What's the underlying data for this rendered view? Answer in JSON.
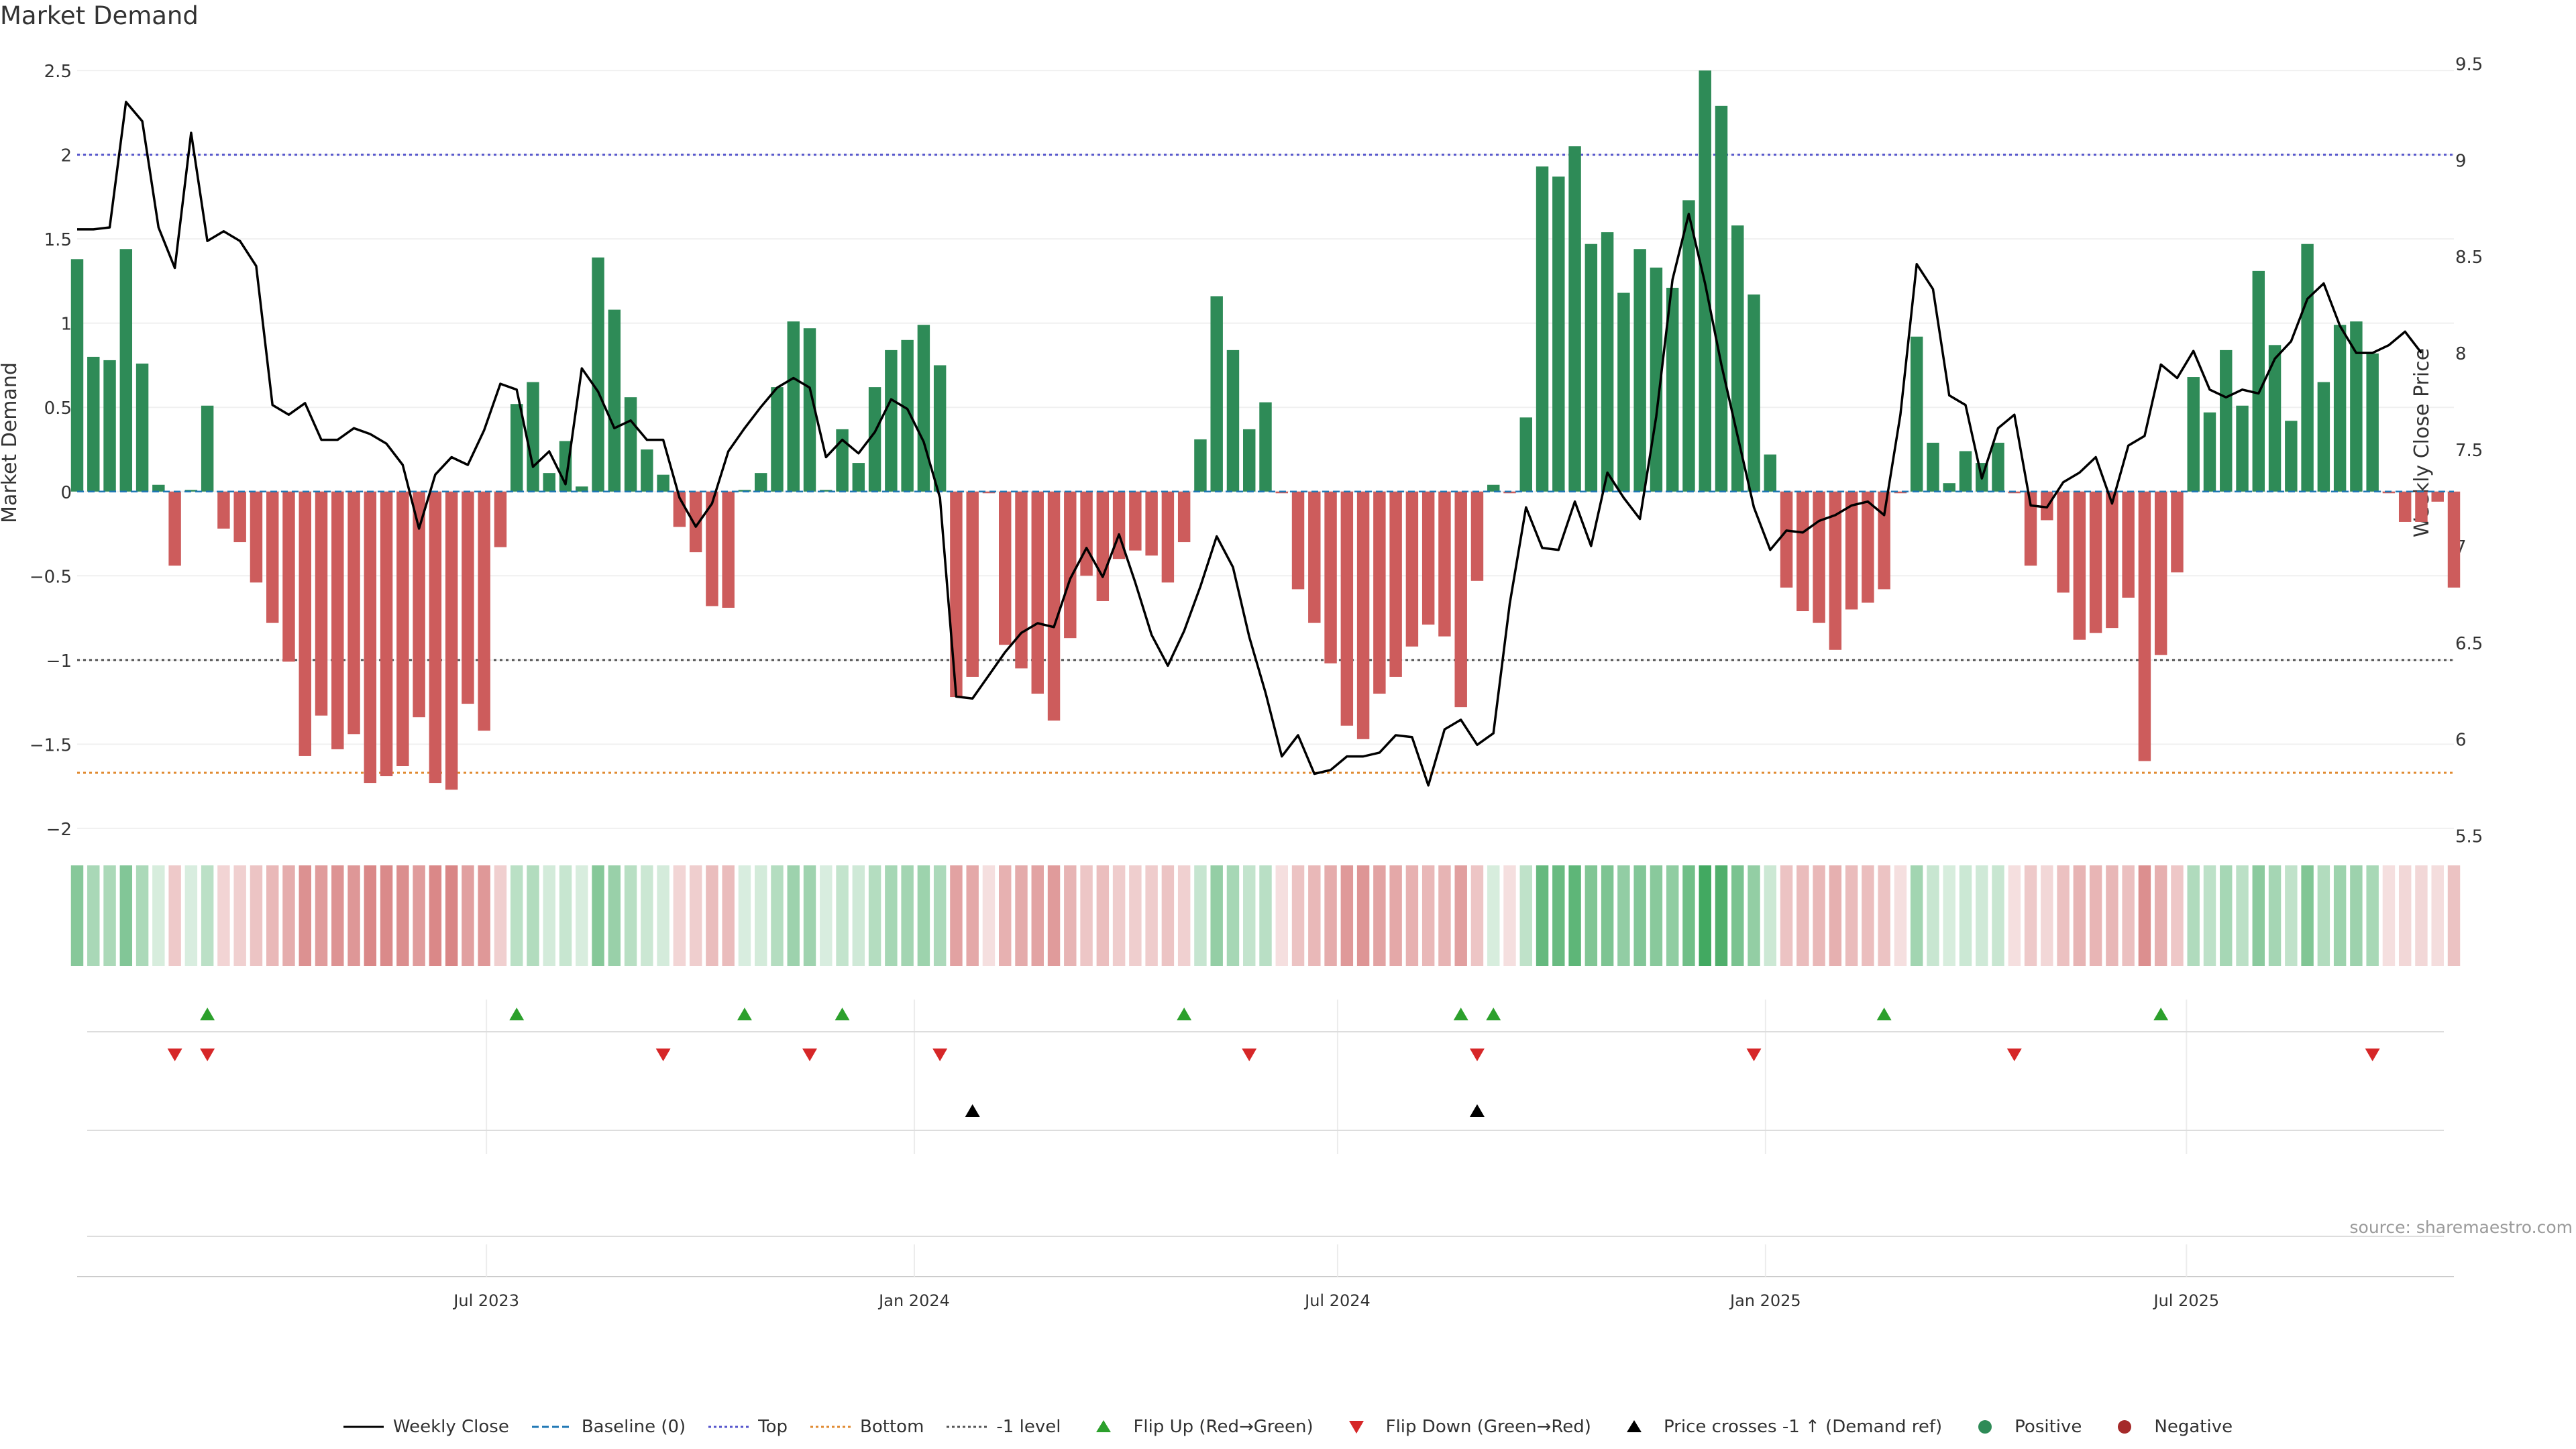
{
  "title": "Market Demand",
  "source": "source: sharemaestro.com",
  "chart_data": {
    "type": "bar",
    "title": "Market Demand",
    "ylabel": "Market Demand",
    "y2label": "Weekly Close Price",
    "ylim": [
      -2.1,
      2.6
    ],
    "y2lim": [
      5.45,
      9.55
    ],
    "yticks": [
      -2,
      -1.5,
      -1,
      -0.5,
      0,
      0.5,
      1,
      1.5,
      2,
      2.5
    ],
    "ytick_labels": [
      "−2",
      "−1.5",
      "−1",
      "−0.5",
      "0",
      "0.5",
      "1",
      "1.5",
      "2",
      "2.5"
    ],
    "y2ticks": [
      5.5,
      6,
      6.5,
      7,
      7.5,
      8,
      8.5,
      9,
      9.5
    ],
    "y2tick_labels": [
      "5.5",
      "6",
      "6.5",
      "7",
      "7.5",
      "8",
      "8.5",
      "9",
      "9.5"
    ],
    "x_start": "2023-01-06",
    "x_end": "2025-10-24",
    "xticks": [
      "2023-07-01",
      "2024-01-01",
      "2024-07-01",
      "2025-01-01",
      "2025-07-01"
    ],
    "xtick_labels": [
      "Jul 2023",
      "Jan 2024",
      "Jul 2024",
      "Jan 2025",
      "Jul 2025"
    ],
    "levels": {
      "top": 2,
      "bottom": -1.67,
      "minus_one": -1
    },
    "colors": {
      "positive": "#2e8b57",
      "negative": "#cd5c5c",
      "close": "#000000",
      "top": "#5555cc",
      "bottom": "#e08a30",
      "minus_one": "#555555",
      "baseline": "#1f77b4",
      "flip_up": "#2ca02c",
      "flip_down": "#d62728"
    },
    "demand": [
      1.38,
      0.8,
      0.78,
      1.44,
      0.76,
      0.04,
      -0.44,
      0.01,
      0.51,
      -0.22,
      -0.3,
      -0.54,
      -0.78,
      -1.01,
      -1.57,
      -1.33,
      -1.53,
      -1.44,
      -1.73,
      -1.69,
      -1.63,
      -1.34,
      -1.73,
      -1.77,
      -1.26,
      -1.42,
      -0.33,
      0.52,
      0.65,
      0.11,
      0.3,
      0.03,
      1.39,
      1.08,
      0.56,
      0.25,
      0.1,
      -0.21,
      -0.36,
      -0.68,
      -0.69,
      0.01,
      0.11,
      0.62,
      1.01,
      0.97,
      0.01,
      0.37,
      0.17,
      0.62,
      0.84,
      0.9,
      0.99,
      0.75,
      -1.22,
      -1.1,
      -0.01,
      -0.91,
      -1.05,
      -1.2,
      -1.36,
      -0.87,
      -0.5,
      -0.65,
      -0.4,
      -0.35,
      -0.38,
      -0.54,
      -0.3,
      0.31,
      1.16,
      0.84,
      0.37,
      0.53,
      -0.01,
      -0.58,
      -0.78,
      -1.02,
      -1.39,
      -1.47,
      -1.2,
      -1.1,
      -0.92,
      -0.79,
      -0.86,
      -1.28,
      -0.53,
      0.04,
      -0.01,
      0.44,
      1.93,
      1.87,
      2.05,
      1.47,
      1.54,
      1.18,
      1.44,
      1.33,
      1.21,
      1.73,
      2.5,
      2.29,
      1.58,
      1.17,
      0.22,
      -0.57,
      -0.71,
      -0.78,
      -0.94,
      -0.7,
      -0.66,
      -0.58,
      -0.01,
      0.92,
      0.29,
      0.05,
      0.24,
      0.17,
      0.29,
      -0.01,
      -0.44,
      -0.17,
      -0.6,
      -0.88,
      -0.84,
      -0.81,
      -0.63,
      -1.6,
      -0.97,
      -0.48,
      0.68,
      0.47,
      0.84,
      0.51,
      1.31,
      0.87,
      0.42,
      1.47,
      0.65,
      0.99,
      1.01,
      0.82,
      -0.01,
      -0.18,
      -0.18,
      -0.06,
      -0.57
    ],
    "close": [
      8.64,
      8.64,
      8.65,
      9.3,
      9.2,
      8.65,
      8.44,
      9.14,
      8.58,
      8.63,
      8.58,
      8.45,
      7.73,
      7.68,
      7.74,
      7.55,
      7.55,
      7.61,
      7.58,
      7.53,
      7.42,
      7.09,
      7.37,
      7.46,
      7.42,
      7.6,
      7.84,
      7.81,
      7.41,
      7.49,
      7.32,
      7.92,
      7.8,
      7.61,
      7.65,
      7.55,
      7.55,
      7.25,
      7.1,
      7.22,
      7.49,
      7.61,
      7.72,
      7.82,
      7.87,
      7.82,
      7.46,
      7.55,
      7.48,
      7.59,
      7.76,
      7.71,
      7.54,
      7.25,
      6.22,
      6.21,
      6.33,
      6.45,
      6.55,
      6.6,
      6.58,
      6.83,
      6.99,
      6.84,
      7.06,
      6.81,
      6.54,
      6.38,
      6.56,
      6.79,
      7.05,
      6.89,
      6.53,
      6.24,
      5.91,
      6.02,
      5.82,
      5.84,
      5.91,
      5.91,
      5.93,
      6.02,
      6.01,
      5.76,
      6.05,
      6.1,
      5.97,
      6.03,
      6.7,
      7.2,
      6.99,
      6.98,
      7.23,
      7.0,
      7.38,
      7.25,
      7.14,
      7.67,
      8.38,
      8.72,
      8.36,
      7.94,
      7.57,
      7.2,
      6.98,
      7.08,
      7.07,
      7.13,
      7.16,
      7.21,
      7.23,
      7.16,
      7.68,
      8.46,
      8.33,
      7.78,
      7.73,
      7.35,
      7.61,
      7.68,
      7.21,
      7.2,
      7.33,
      7.38,
      7.46,
      7.22,
      7.52,
      7.57,
      7.94,
      7.87,
      8.01,
      7.81,
      7.77,
      7.81,
      7.79,
      7.97,
      8.06,
      8.28,
      8.36,
      8.14,
      8.0,
      8.0,
      8.04,
      8.11,
      8.0
    ],
    "flip_up": [
      8,
      27,
      41,
      47,
      68,
      85,
      87,
      111,
      128
    ],
    "flip_down": [
      6,
      8,
      36,
      45,
      53,
      72,
      86,
      103,
      119,
      141
    ],
    "price_cross": [
      55,
      86
    ]
  },
  "legend": [
    {
      "label": "Weekly Close",
      "symbol": "line-solid",
      "color": "#000000"
    },
    {
      "label": "Baseline (0)",
      "symbol": "line-dashed",
      "color": "#1f77b4"
    },
    {
      "label": "Top",
      "symbol": "line-dotted",
      "color": "#5555cc"
    },
    {
      "label": "Bottom",
      "symbol": "line-dotted",
      "color": "#e08a30"
    },
    {
      "label": "-1 level",
      "symbol": "line-dotted",
      "color": "#555555"
    },
    {
      "label": "Flip Up (Red→Green)",
      "symbol": "triangle-up",
      "color": "#2ca02c"
    },
    {
      "label": "Flip Down (Green→Red)",
      "symbol": "triangle-down",
      "color": "#d62728"
    },
    {
      "label": "Price crosses -1 ↑ (Demand ref)",
      "symbol": "triangle-up",
      "color": "#000000"
    },
    {
      "label": "Positive",
      "symbol": "dot",
      "color": "#2e8b57"
    },
    {
      "label": "Negative",
      "symbol": "dot",
      "color": "#a52a2a"
    }
  ]
}
